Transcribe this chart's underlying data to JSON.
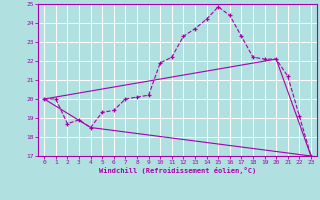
{
  "title": "",
  "xlabel": "Windchill (Refroidissement éolien,°C)",
  "ylabel": "",
  "xlim": [
    -0.5,
    23.5
  ],
  "ylim": [
    17,
    25
  ],
  "yticks": [
    17,
    18,
    19,
    20,
    21,
    22,
    23,
    24,
    25
  ],
  "xticks": [
    0,
    1,
    2,
    3,
    4,
    5,
    6,
    7,
    8,
    9,
    10,
    11,
    12,
    13,
    14,
    15,
    16,
    17,
    18,
    19,
    20,
    21,
    22,
    23
  ],
  "bg_color": "#b0e0e0",
  "line_color": "#aa00aa",
  "grid_color": "#d0f0f0",
  "curve": {
    "x": [
      0,
      1,
      2,
      3,
      4,
      5,
      6,
      7,
      8,
      9,
      10,
      11,
      12,
      13,
      14,
      15,
      16,
      17,
      18,
      19,
      20,
      21,
      22,
      23
    ],
    "y": [
      20.0,
      20.0,
      18.7,
      18.9,
      18.5,
      19.3,
      19.4,
      20.0,
      20.1,
      20.2,
      21.9,
      22.2,
      23.3,
      23.7,
      24.2,
      24.85,
      24.4,
      23.3,
      22.2,
      22.1,
      22.1,
      21.2,
      19.1,
      17.0
    ]
  },
  "line1": {
    "x": [
      0,
      20,
      23
    ],
    "y": [
      20.0,
      22.1,
      17.0
    ]
  },
  "line2": {
    "x": [
      0,
      4,
      23
    ],
    "y": [
      20.0,
      18.5,
      17.0
    ]
  }
}
